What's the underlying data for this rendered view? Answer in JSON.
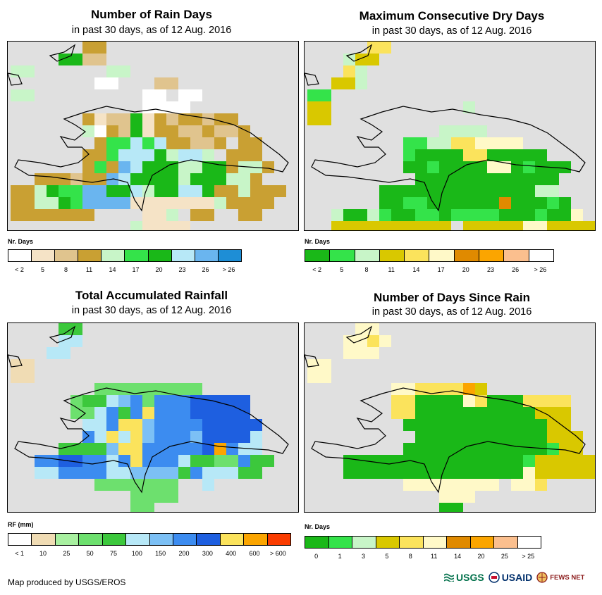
{
  "panels": {
    "rain_days": {
      "title": "Number of Rain Days",
      "subtitle": "in past 30 days, as of 12 Aug. 2016",
      "legend_title": "Nr. Days",
      "legend_colors": [
        "#ffffff",
        "#f5e3c6",
        "#e0c48e",
        "#c9a033",
        "#c8f5c8",
        "#34e34a",
        "#1ab818",
        "#b7e8f7",
        "#6ab5ef",
        "#1e8ed6"
      ],
      "legend_labels": [
        "< 2",
        "5",
        "8",
        "11",
        "14",
        "17",
        "20",
        "23",
        "26",
        "> 26"
      ]
    },
    "dry_days": {
      "title": "Maximum Consecutive Dry Days",
      "subtitle": "in past 30 days, as of 12 Aug. 2016",
      "legend_title": "Nr. Days",
      "legend_colors": [
        "#1ab818",
        "#34e34a",
        "#c8f5c8",
        "#d9c800",
        "#fbe35c",
        "#fff9c8",
        "#e08a00",
        "#fba500",
        "#fbbf8e",
        "#ffffff"
      ],
      "legend_labels": [
        "< 2",
        "5",
        "8",
        "11",
        "14",
        "17",
        "20",
        "23",
        "26",
        "> 26"
      ]
    },
    "rainfall": {
      "title": "Total Accumulated Rainfall",
      "subtitle": "in past 30 days, as of 12 Aug. 2016",
      "legend_title": "RF (mm)",
      "legend_colors": [
        "#ffffff",
        "#f0dcb4",
        "#a8f0a0",
        "#6de06e",
        "#3cc83c",
        "#b7e8f7",
        "#7cc0f5",
        "#3c8cf0",
        "#1e5fe0",
        "#fbe35c",
        "#fba500",
        "#fa3c00"
      ],
      "legend_labels": [
        "< 1",
        "10",
        "25",
        "50",
        "75",
        "100",
        "150",
        "200",
        "300",
        "400",
        "600",
        "> 600"
      ]
    },
    "since_rain": {
      "title": "Number of Days Since Rain",
      "subtitle": "in past 30 days, as of 12 Aug. 2016",
      "legend_title": "Nr. Days",
      "legend_colors": [
        "#1ab818",
        "#34e34a",
        "#c8f5c8",
        "#d9c800",
        "#fbe35c",
        "#fff9c8",
        "#e08a00",
        "#fba500",
        "#fbbf8e",
        "#ffffff"
      ],
      "legend_labels": [
        "0",
        "1",
        "3",
        "5",
        "8",
        "11",
        "14",
        "20",
        "25",
        "> 25"
      ]
    }
  },
  "grids": {
    "rain_days": [
      "......dd..............",
      "....ggcc..............",
      "ee......ee............",
      ".......aa...cc........",
      "ee.........aa.aa......",
      "...........aaaa.......",
      "......dbccgbdcddcdd...",
      "......ewdcgbddccdccd..",
      ".......dffhfhddccd.dd.",
      "......ddfhhhgehhe.ddd.",
      "......dfdihgggeeggdeed",
      "..dddcddihggggegggeed.",
      "ddegffiigghegghhgddeddd",
      "ddeegfiiiibbbbbbbedddd",
      "ddddddd....bbe.dd..dd.",
      "..........ebbbb.......",
      "............bb........"
    ],
    "dry_days": [
      ".....ee.................",
      "...cdd..................",
      "...ec...................",
      "..ddc...................",
      "bb......................",
      "dd...........c..........",
      "dd......................",
      "...........cccc.........",
      "........bbcceeffff.....",
      "........baaaaeeaaaaa....",
      "........aabaaaaffabaaa..",
      ".........aaaaaaaaaaaa...",
      "......aaaaaaaaaaaaacc...",
      "......aabbaaaaaagaaaba..",
      "..caacbaabbabbbbaaabaaf.",
      "..dddddddddd.dddddffdddd",
      "..........ddd...........",
      "..........dd............"
    ],
    "rainfall": [
      "....ee.................",
      "....ff.................",
      "...ff..................",
      "bb.....................",
      "bb.....................",
      ".......ddddddddd.......",
      ".....deefghdhhhiiiii...",
      ".....ddfhehjhhhiiiii...",
      "......ffhjjghhhhiiiii..",
      "......hfjfjghhhgiiiif..",
      "....eeeegjjhhhhhikhff..",
      "..hhiihhfhjhhhfeeddhee.",
      "..ffhhhhffggggehfffee..",
      ".......ddddddd..f.......",
      "..........dddd.........",
      "..........dd..........."
    ],
    "since_rain": [
      "....ff..................",
      "...ffef.................",
      "...fff..................",
      "ff......................",
      "ff......................",
      ".......ffeeeehd.........",
      ".......eeaaaafeaaaeeee..",
      ".......eeaaaaaaaaaaddd..",
      "........aaaaaaaaaaaadd..",
      ".........aaaaaaaaaaaddd.",
      "........aaaaaaaaaaaabdd.",
      "...aaaaaaaaaaaaaaabddddd",
      "...aaaaaaaaaaaaaaafddddd",
      "........ffffffff.ffe....",
      "...........fff..........",
      "...........aa..........."
    ]
  },
  "footer": {
    "credit": "Map produced by USGS/EROS",
    "logos": [
      "USGS",
      "USAID",
      "FEWS NET"
    ]
  }
}
